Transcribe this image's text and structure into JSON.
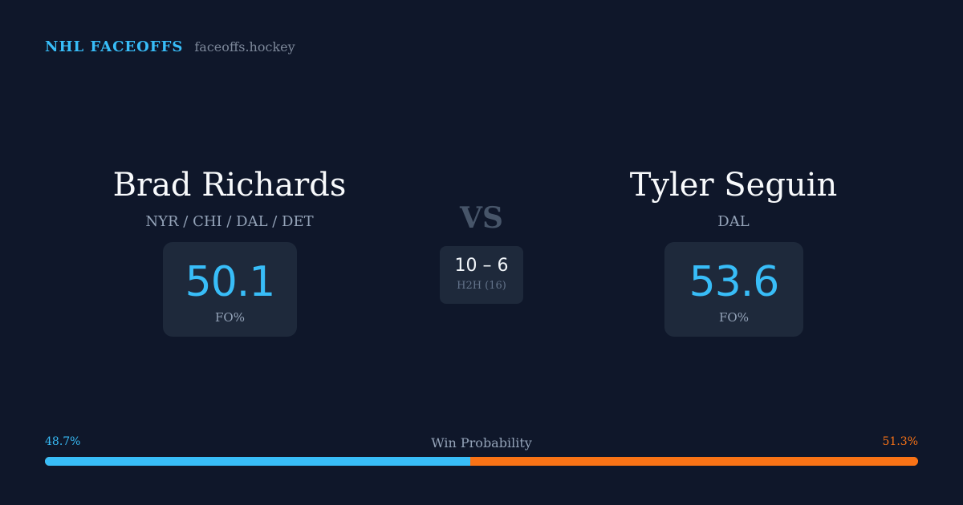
{
  "brand": {
    "name": "NHL FACEOFFS",
    "url": "faceoffs.hockey"
  },
  "player_left": {
    "name": "Brad Richards",
    "teams": "NYR / CHI / DAL / DET",
    "fo_pct": "50.1",
    "fo_label": "FO%"
  },
  "player_right": {
    "name": "Tyler Seguin",
    "teams": "DAL",
    "fo_pct": "53.6",
    "fo_label": "FO%"
  },
  "versus": {
    "label": "VS",
    "h2h_score": "10 – 6",
    "h2h_label": "H2H (16)"
  },
  "win_probability": {
    "title": "Win Probability",
    "left_text": "48.7%",
    "right_text": "51.3%",
    "left_value": 48.7,
    "right_value": 51.3
  },
  "colors": {
    "background": "#0f172a",
    "card": "#1e293b",
    "accent_left": "#38bdf8",
    "accent_right": "#f97316"
  }
}
